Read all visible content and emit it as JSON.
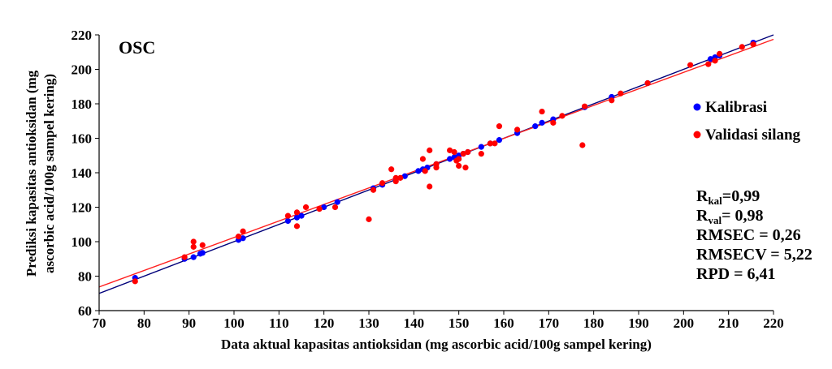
{
  "chart_data": {
    "type": "scatter",
    "panel_label": "OSC",
    "xlabel": "Data aktual kapasitas antioksidan (mg ascorbic acid/100g sampel kering)",
    "ylabel_line1": "Prediksi kapasitas antioksidan (mg",
    "ylabel_line2": "ascorbic acid/100g sampel kering)",
    "xlim": [
      70,
      220
    ],
    "ylim": [
      60,
      220
    ],
    "xticks": [
      70,
      80,
      90,
      100,
      110,
      120,
      130,
      140,
      150,
      160,
      170,
      180,
      190,
      200,
      210,
      220
    ],
    "yticks": [
      60,
      80,
      100,
      120,
      140,
      160,
      180,
      200,
      220
    ],
    "grid": false,
    "legend_position": "right",
    "series": [
      {
        "name": "Kalibrasi",
        "color": "#0000ff",
        "points": [
          [
            78,
            79
          ],
          [
            89,
            90
          ],
          [
            91,
            91
          ],
          [
            92.5,
            93
          ],
          [
            93,
            93.5
          ],
          [
            101,
            101
          ],
          [
            102,
            102
          ],
          [
            112,
            112
          ],
          [
            114,
            114
          ],
          [
            115,
            115
          ],
          [
            120,
            120
          ],
          [
            123,
            123
          ],
          [
            131,
            131
          ],
          [
            133,
            133
          ],
          [
            136,
            136
          ],
          [
            138,
            138
          ],
          [
            141,
            141
          ],
          [
            142,
            142
          ],
          [
            143,
            143
          ],
          [
            145,
            145
          ],
          [
            148,
            148
          ],
          [
            149,
            149
          ],
          [
            150,
            150
          ],
          [
            151,
            151
          ],
          [
            152,
            152
          ],
          [
            155,
            155
          ],
          [
            157,
            157
          ],
          [
            159,
            159
          ],
          [
            163,
            163
          ],
          [
            167,
            167
          ],
          [
            168.5,
            169
          ],
          [
            171,
            171
          ],
          [
            178,
            178
          ],
          [
            184,
            184
          ],
          [
            192,
            192
          ],
          [
            206,
            206
          ],
          [
            207,
            207
          ],
          [
            208,
            208
          ],
          [
            215.5,
            215.5
          ]
        ]
      },
      {
        "name": "Validasi silang",
        "color": "#ff0000",
        "points": [
          [
            78,
            77
          ],
          [
            89,
            91
          ],
          [
            91,
            97
          ],
          [
            91,
            100
          ],
          [
            93,
            98
          ],
          [
            101,
            103
          ],
          [
            102,
            106
          ],
          [
            112,
            115
          ],
          [
            114,
            117
          ],
          [
            114,
            109
          ],
          [
            116,
            120
          ],
          [
            119,
            119
          ],
          [
            122.5,
            120
          ],
          [
            130,
            113
          ],
          [
            131,
            130
          ],
          [
            133,
            134
          ],
          [
            135,
            142
          ],
          [
            136,
            137
          ],
          [
            136,
            135
          ],
          [
            137,
            137
          ],
          [
            142,
            148
          ],
          [
            142.5,
            141
          ],
          [
            143.5,
            153
          ],
          [
            143.5,
            132
          ],
          [
            145,
            143
          ],
          [
            145,
            145
          ],
          [
            148,
            153
          ],
          [
            149,
            152
          ],
          [
            149.5,
            147
          ],
          [
            150,
            148
          ],
          [
            150,
            144
          ],
          [
            151,
            151
          ],
          [
            151.5,
            143
          ],
          [
            152,
            152
          ],
          [
            155,
            151
          ],
          [
            157,
            157
          ],
          [
            158,
            157
          ],
          [
            159,
            167
          ],
          [
            163,
            165
          ],
          [
            168.5,
            175.5
          ],
          [
            171,
            169
          ],
          [
            173,
            173
          ],
          [
            177.5,
            156
          ],
          [
            178,
            178.5
          ],
          [
            184,
            182
          ],
          [
            186,
            186
          ],
          [
            192,
            192
          ],
          [
            201.5,
            202.5
          ],
          [
            205.5,
            203
          ],
          [
            207,
            205
          ],
          [
            208,
            209
          ],
          [
            213,
            213
          ],
          [
            215.5,
            214.5
          ]
        ]
      }
    ],
    "fit_lines": [
      {
        "series": "Kalibrasi",
        "color": "#00007a",
        "from": [
          70,
          70
        ],
        "to": [
          220,
          220
        ]
      },
      {
        "series": "Validasi silang",
        "color": "#ff2020",
        "from": [
          70,
          73.7
        ],
        "to": [
          220,
          217.4
        ]
      }
    ],
    "stats": [
      {
        "label": "R",
        "sub": "kal",
        "value": "=0,99"
      },
      {
        "label": "R",
        "sub": "val",
        "value": "= 0,98"
      },
      {
        "label": "RMSEC = 0,26",
        "sub": "",
        "value": ""
      },
      {
        "label": "RMSECV = 5,22",
        "sub": "",
        "value": ""
      },
      {
        "label": "RPD = 6,41",
        "sub": "",
        "value": ""
      }
    ]
  }
}
